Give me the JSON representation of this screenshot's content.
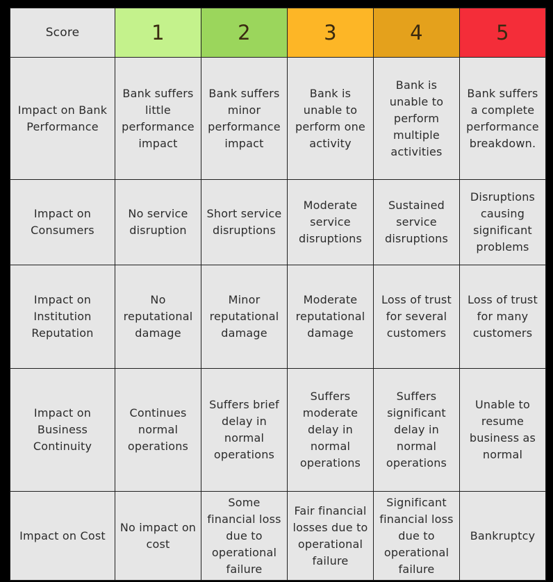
{
  "header": {
    "corner_label": "Score",
    "levels": [
      {
        "label": "1",
        "color": "#c4f28c"
      },
      {
        "label": "2",
        "color": "#9bd65c"
      },
      {
        "label": "3",
        "color": "#fdb626"
      },
      {
        "label": "4",
        "color": "#e4a11c"
      },
      {
        "label": "5",
        "color": "#f42d39"
      }
    ]
  },
  "rows": [
    {
      "label": "Impact on Bank Performance",
      "cells": [
        "Bank suffers little performance impact",
        "Bank suffers minor performance impact",
        "Bank is unable to perform one activity",
        "Bank is unable to perform multiple activities",
        "Bank suffers a complete performance breakdown."
      ]
    },
    {
      "label": "Impact on Consumers",
      "cells": [
        "No service disruption",
        "Short service disruptions",
        "Moderate service disruptions",
        "Sustained service disruptions",
        "Disruptions causing significant problems"
      ]
    },
    {
      "label": "Impact on Institution Reputation",
      "cells": [
        "No reputational damage",
        "Minor reputational damage",
        "Moderate reputational damage",
        "Loss of trust for several customers",
        "Loss of trust for many customers"
      ]
    },
    {
      "label": "Impact on Business Continuity",
      "cells": [
        "Continues normal operations",
        "Suffers brief delay in normal operations",
        "Suffers moderate delay in normal operations",
        "Suffers significant delay in normal operations",
        "Unable to resume business as normal"
      ]
    },
    {
      "label": "Impact on Cost",
      "cells": [
        "No impact on cost",
        "Some financial loss due to operational failure",
        "Fair financial losses due to operational failure",
        "Significant financial loss due to operational failure",
        "Bankruptcy"
      ]
    }
  ]
}
